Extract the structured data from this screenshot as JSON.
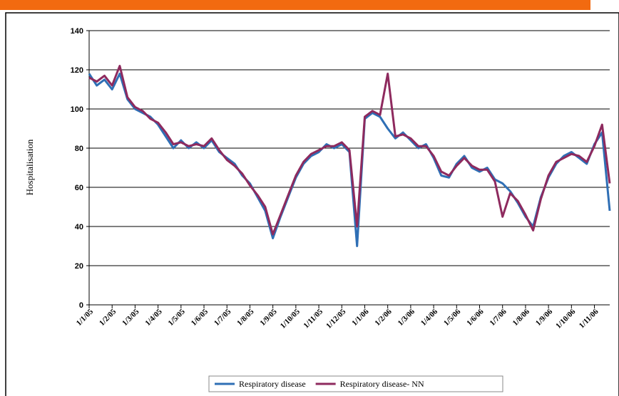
{
  "chart_data": {
    "type": "line",
    "y_label": "Hospitalisation",
    "categories": [
      "1/1/05",
      null,
      null,
      "1/2/05",
      null,
      null,
      "1/3/05",
      null,
      null,
      "1/4/05",
      null,
      null,
      "1/5/05",
      null,
      null,
      "1/6/05",
      null,
      null,
      "1/7/05",
      null,
      null,
      "1/8/05",
      null,
      null,
      "1/9/05",
      null,
      null,
      "1/10/05",
      null,
      null,
      "1/11/05",
      null,
      null,
      "1/12/05",
      null,
      null,
      "1/1/06",
      null,
      null,
      "1/2/06",
      null,
      null,
      "1/3/06",
      null,
      null,
      "1/4/06",
      null,
      null,
      "1/5/06",
      null,
      null,
      "1/6/06",
      null,
      null,
      "1/7/06",
      null,
      null,
      "1/8/06",
      null,
      null,
      "1/9/06",
      null,
      null,
      "1/10/06",
      null,
      null,
      "1/11/06",
      null,
      null
    ],
    "series": [
      {
        "name": "Respiratory disease",
        "color": "#2f6fb5",
        "values": [
          118,
          112,
          115,
          110,
          118,
          105,
          100,
          98,
          96,
          92,
          86,
          80,
          84,
          80,
          83,
          80,
          84,
          78,
          75,
          72,
          66,
          62,
          55,
          48,
          34,
          45,
          55,
          65,
          72,
          76,
          78,
          82,
          80,
          82,
          78,
          30,
          95,
          98,
          96,
          90,
          85,
          88,
          84,
          80,
          82,
          75,
          66,
          65,
          72,
          76,
          70,
          68,
          70,
          64,
          62,
          58,
          52,
          45,
          40,
          55,
          65,
          72,
          76,
          78,
          75,
          72,
          82,
          88,
          48
        ]
      },
      {
        "name": "Respiratory disease- NN",
        "color": "#8e2a5e",
        "values": [
          116,
          114,
          117,
          112,
          122,
          106,
          101,
          99,
          95,
          93,
          88,
          82,
          83,
          81,
          82,
          81,
          85,
          79,
          74,
          71,
          67,
          61,
          56,
          50,
          36,
          46,
          56,
          66,
          73,
          77,
          79,
          81,
          81,
          83,
          79,
          40,
          96,
          99,
          97,
          118,
          86,
          87,
          85,
          81,
          81,
          76,
          68,
          66,
          71,
          75,
          71,
          69,
          69,
          63,
          45,
          57,
          53,
          46,
          38,
          54,
          66,
          73,
          75,
          77,
          76,
          73,
          81,
          92,
          62
        ]
      }
    ],
    "ylim": [
      0,
      140
    ],
    "yticks": [
      0,
      20,
      40,
      60,
      80,
      100,
      120,
      140
    ],
    "grid": true,
    "legend": "bottom"
  }
}
